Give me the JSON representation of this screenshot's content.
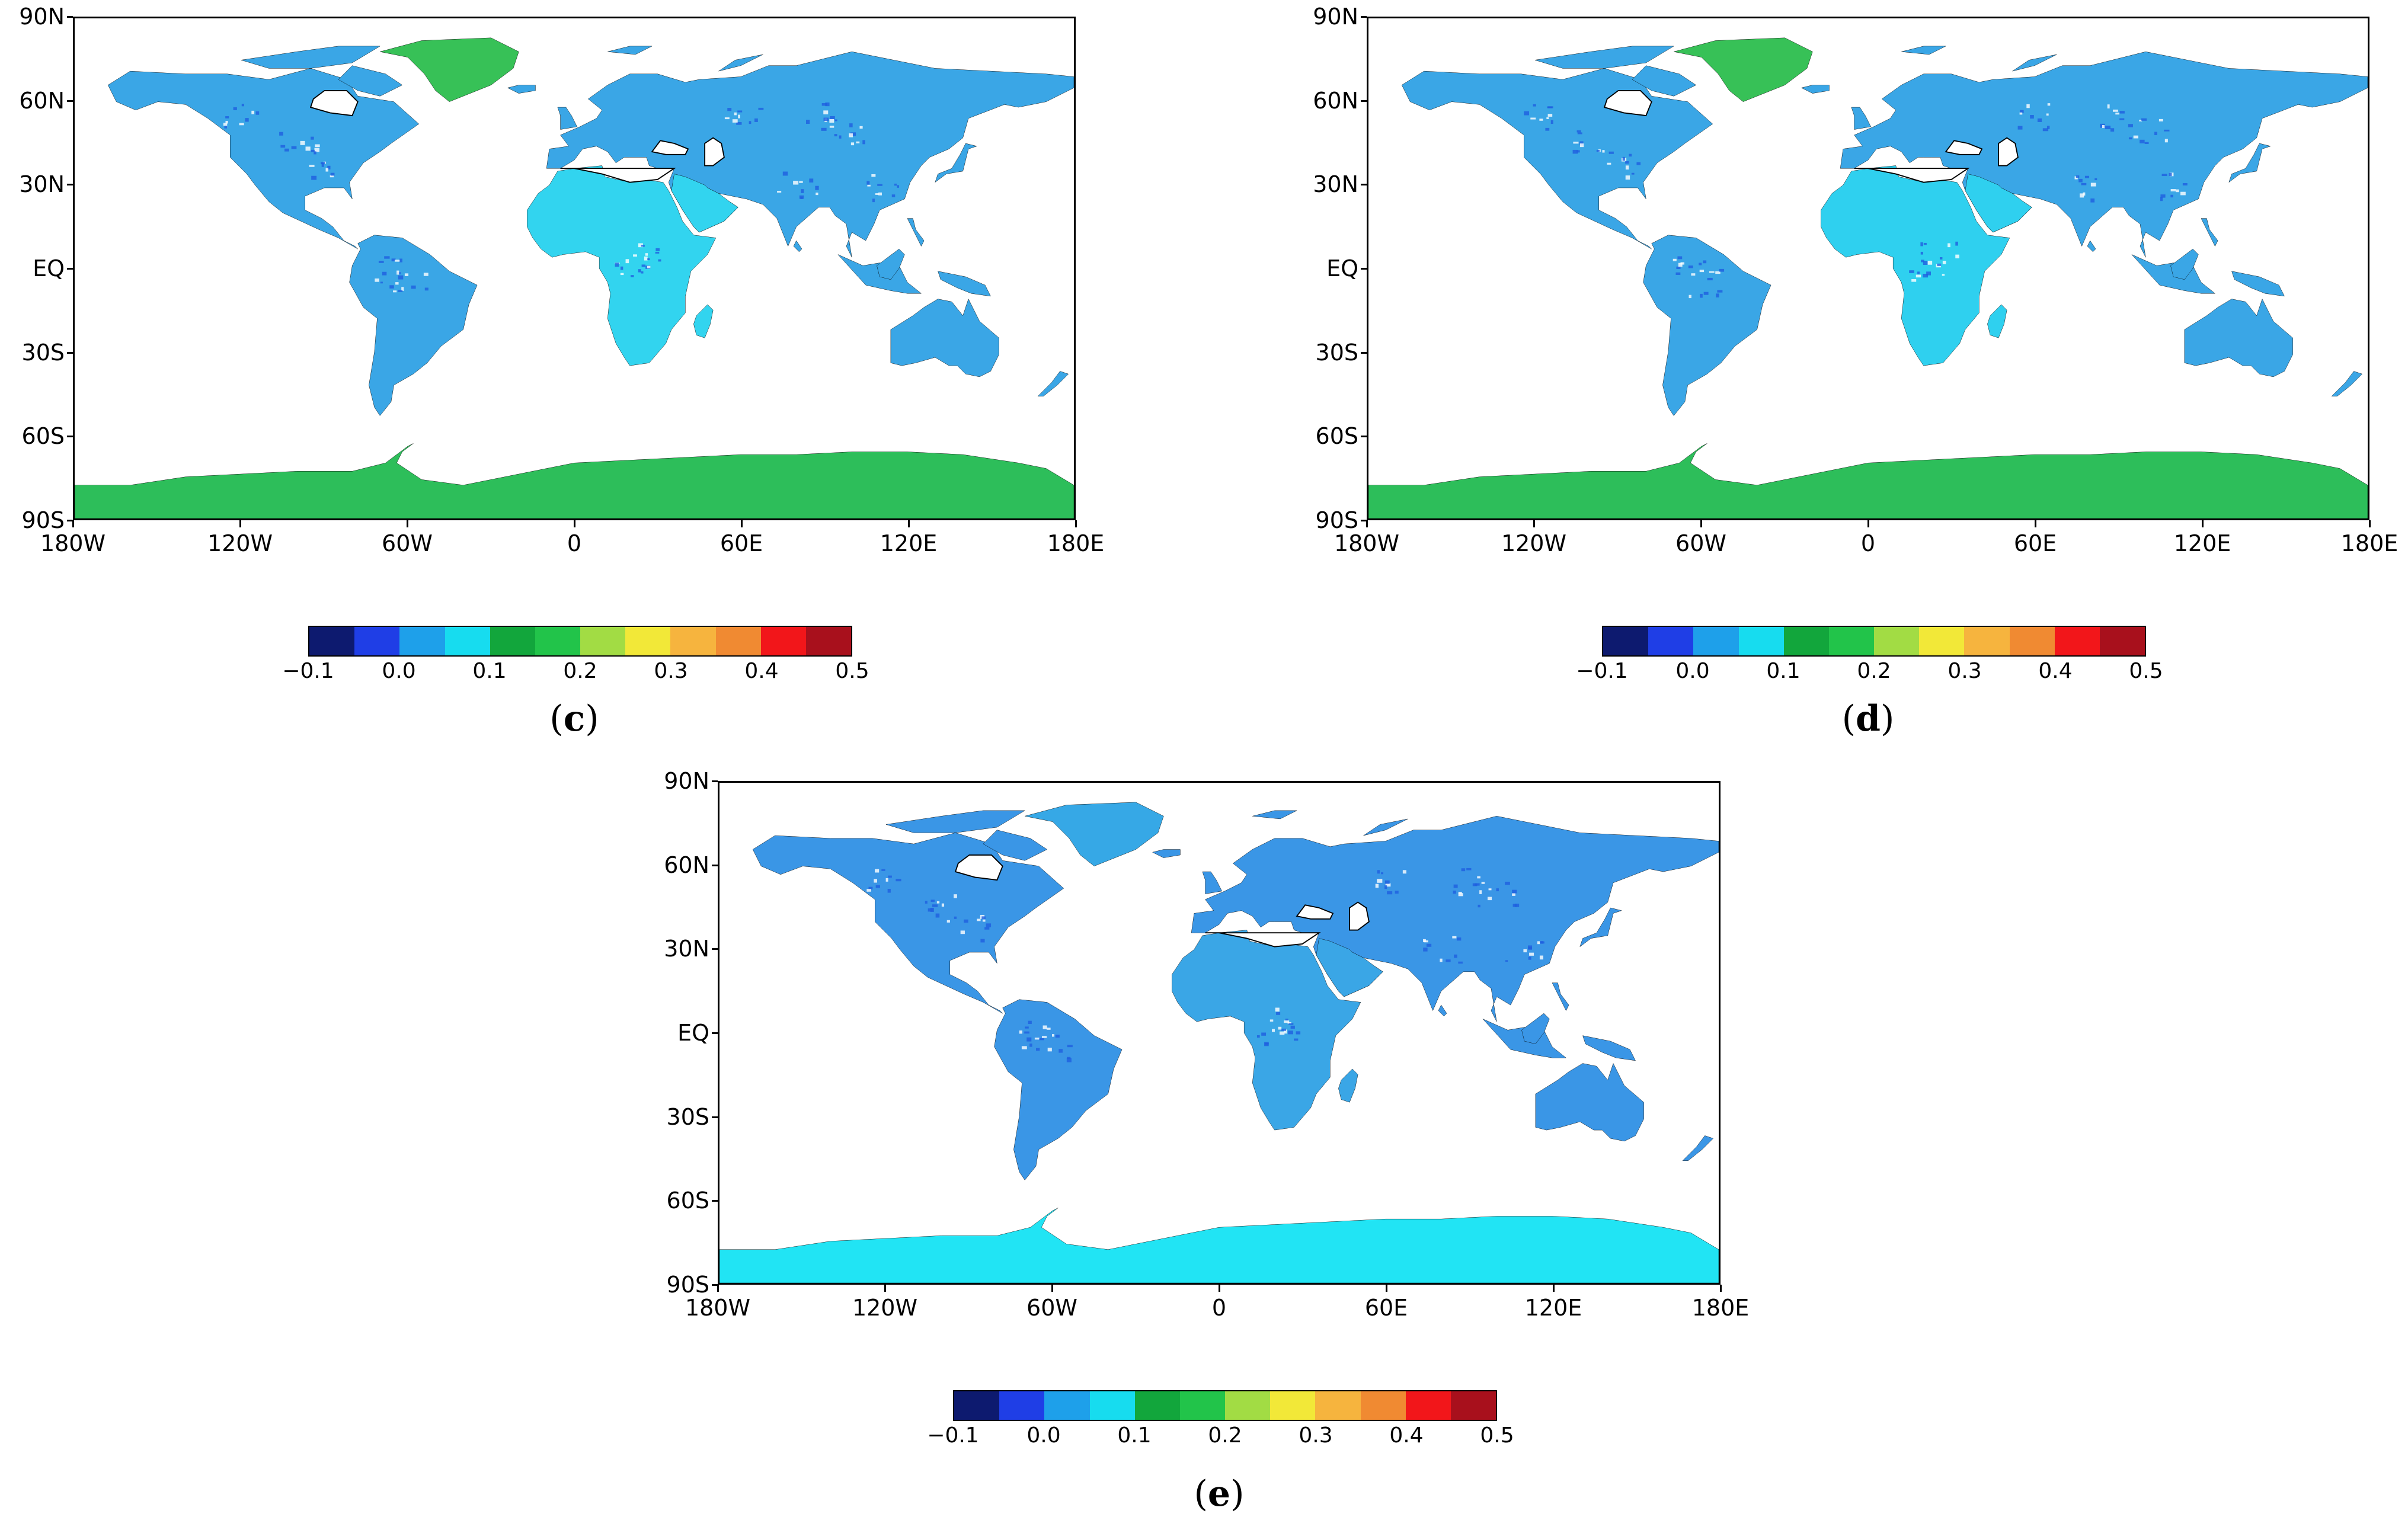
{
  "lat_ticks": [
    "90N",
    "60N",
    "30N",
    "EQ",
    "30S",
    "60S",
    "90S"
  ],
  "lon_ticks": [
    "180W",
    "120W",
    "60W",
    "0",
    "60E",
    "120E",
    "180E"
  ],
  "colorbar": {
    "tick_labels": [
      "−0.1",
      "0.0",
      "0.1",
      "0.2",
      "0.3",
      "0.4",
      "0.5"
    ],
    "colors": [
      "#0d1a6f",
      "#1f3ee6",
      "#1ea0ea",
      "#17dcef",
      "#12a63c",
      "#22c44a",
      "#a2dc44",
      "#f2e838",
      "#f6b43e",
      "#f08a32",
      "#f2161a",
      "#a8101c"
    ]
  },
  "panels": [
    {
      "label": "c",
      "antarctica": "#2dbe5a",
      "greenland": "#37c157",
      "land": "#3aa6e6",
      "africa": "#32d4ef"
    },
    {
      "label": "d",
      "antarctica": "#2dbe5a",
      "greenland": "#37c157",
      "land": "#3aa6e6",
      "africa": "#2fd0ef"
    },
    {
      "label": "e",
      "antarctica": "#21e4f4",
      "greenland": "#36a8e6",
      "land": "#3a96e6",
      "africa": "#3aa6e6"
    }
  ]
}
